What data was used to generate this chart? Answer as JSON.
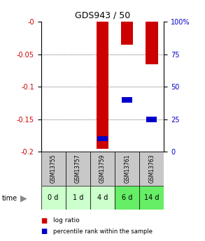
{
  "title": "GDS943 / 50",
  "samples": [
    "GSM13755",
    "GSM13757",
    "GSM13759",
    "GSM13761",
    "GSM13763"
  ],
  "timepoints": [
    "0 d",
    "1 d",
    "4 d",
    "6 d",
    "14 d"
  ],
  "log_ratio": [
    0,
    0,
    -0.195,
    -0.035,
    -0.065
  ],
  "percentile_rank_pct": [
    null,
    null,
    10,
    40,
    25
  ],
  "ylim_left": [
    0,
    -0.2
  ],
  "ylim_right": [
    100,
    0
  ],
  "yticks_left": [
    0,
    -0.05,
    -0.1,
    -0.15,
    -0.2
  ],
  "yticks_right": [
    100,
    75,
    50,
    25,
    0
  ],
  "ytick_left_labels": [
    "-0",
    "-0.05",
    "-0.1",
    "-0.15",
    "-0.2"
  ],
  "ytick_right_labels": [
    "100%",
    "75",
    "50",
    "25",
    "0"
  ],
  "red_color": "#cc0000",
  "blue_color": "#0000cc",
  "sample_bg": "#c8c8c8",
  "time_bg_colors": [
    "#ccffcc",
    "#ccffcc",
    "#ccffcc",
    "#66ee66",
    "#66ee66"
  ],
  "bar_width": 0.5,
  "left_label_color": "#cc0000",
  "right_label_color": "#0000cc",
  "time_arrow_color": "#888888"
}
